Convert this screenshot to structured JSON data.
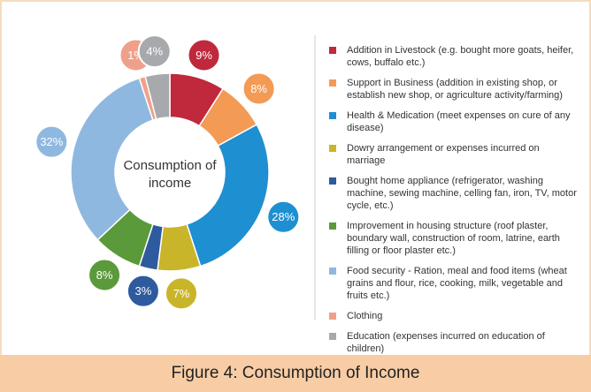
{
  "chart_data": {
    "type": "pie",
    "title": "Figure 4:  Consumption of Income",
    "center_label": "Consumption of income",
    "categories": [
      "Addition in Livestock (e.g. bought more goats, heifer, cows, buffalo etc.)",
      "Support in Business (addition in existing shop, or establish new shop, or agriculture activity/farming)",
      "Health & Medication (meet expenses on cure of any disease)",
      "Dowry arrangement or expenses incurred on marriage",
      "Bought home appliance (refrigerator, washing machine, sewing machine, celling fan, iron, TV, motor cycle, etc.)",
      "Improvement in housing structure (roof plaster, boundary wall, construction of room, latrine, earth filling or floor plaster etc.)",
      "Food security - Ration, meal and food items (wheat grains and flour, rice, cooking, milk, vegetable and fruits etc.)",
      "Clothing",
      "Education (expenses incurred on education of children)"
    ],
    "values": [
      9,
      8,
      28,
      7,
      3,
      8,
      32,
      1,
      4
    ],
    "value_labels": [
      "9%",
      "8%",
      "28%",
      "7%",
      "3%",
      "8%",
      "32%",
      "1%",
      "4%"
    ],
    "colors": [
      "#c0283c",
      "#f39a55",
      "#1e8fd0",
      "#c9b52a",
      "#2e5a9e",
      "#5a9a3a",
      "#8fb8e0",
      "#f0a08a",
      "#a7a9ac"
    ]
  }
}
